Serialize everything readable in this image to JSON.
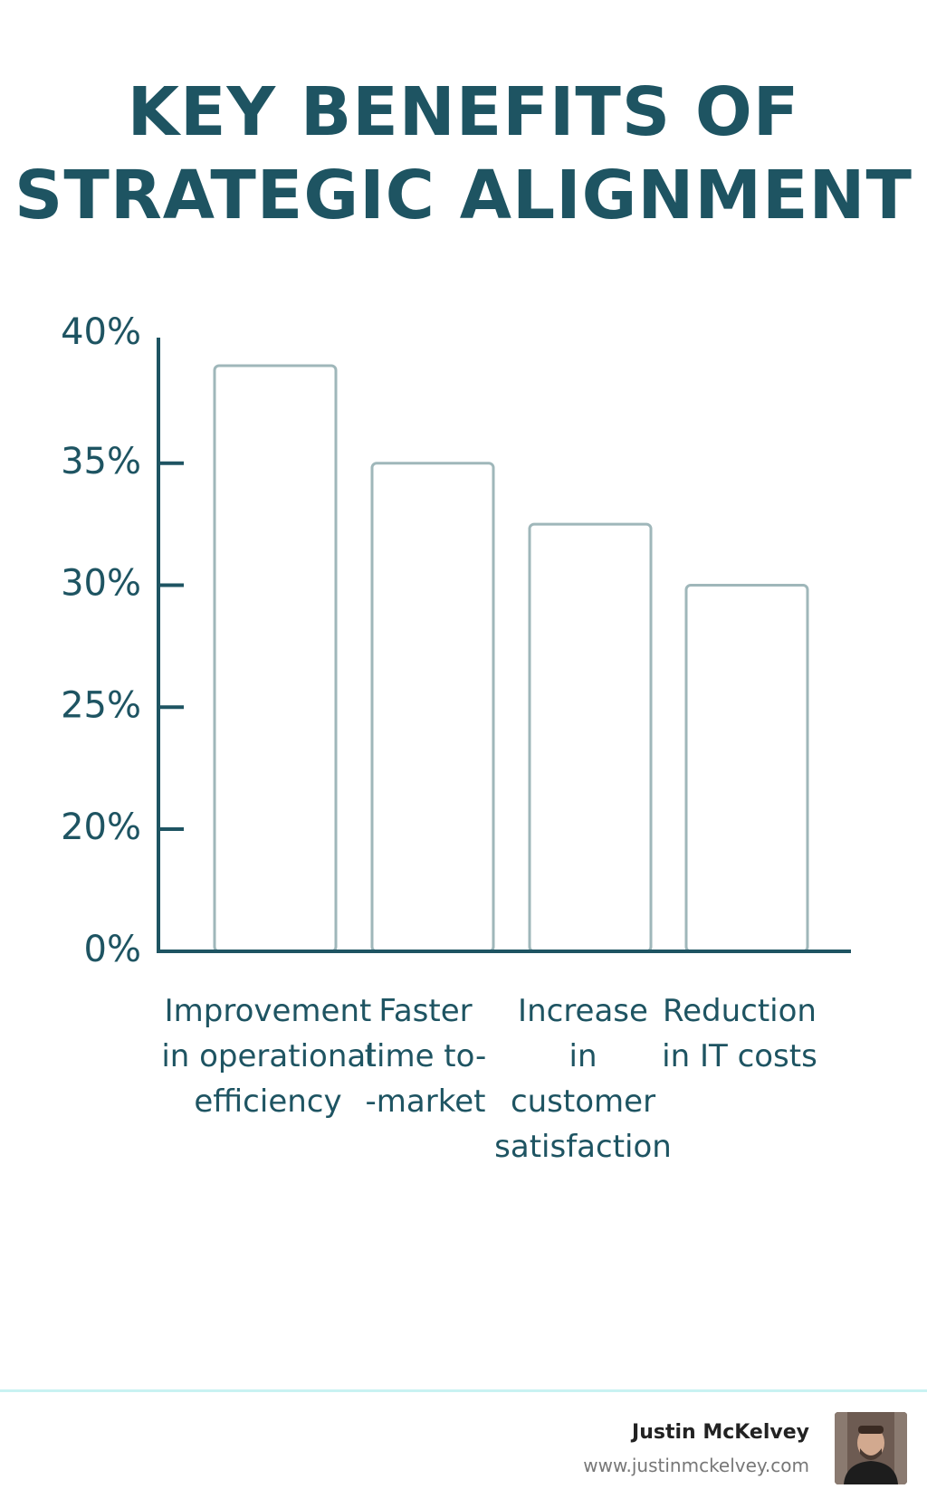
{
  "chart_data": {
    "type": "bar",
    "title_lines": [
      "KEY BENEFITS OF",
      "STRATEGIC ALIGNMENT"
    ],
    "categories": [
      "Improvement in operational efficiency",
      "Faster time-to-market",
      "Increase in customer satisfaction",
      "Reduction in IT costs"
    ],
    "category_label_lines": [
      [
        "Improvement",
        "in operational",
        "efficiency"
      ],
      [
        "Faster",
        "time to-",
        "-market"
      ],
      [
        "Increase",
        "in",
        "customer",
        "satisfaction"
      ],
      [
        "Reduction",
        "in IT costs"
      ]
    ],
    "values": [
      39,
      35,
      32.5,
      30
    ],
    "ytick_labels": [
      {
        "value": 0,
        "label": "0%"
      },
      {
        "value": 20,
        "label": "20%"
      },
      {
        "value": 25,
        "label": "25%"
      },
      {
        "value": 30,
        "label": "30%"
      },
      {
        "value": 35,
        "label": "35%"
      },
      {
        "value": 40,
        "label": "40%"
      }
    ],
    "ylim": [
      0,
      40
    ],
    "xlabel": "",
    "ylabel": "",
    "grid": false,
    "colors": {
      "axis": "#1e5462",
      "bar_fill": "#ffffff",
      "bar_stroke": "#9fb7ba",
      "title": "#1e5462"
    }
  },
  "footer": {
    "author_name": "Justin McKelvey",
    "author_url": "www.justinmckelvey.com",
    "divider_color": "#c9f2f2"
  }
}
